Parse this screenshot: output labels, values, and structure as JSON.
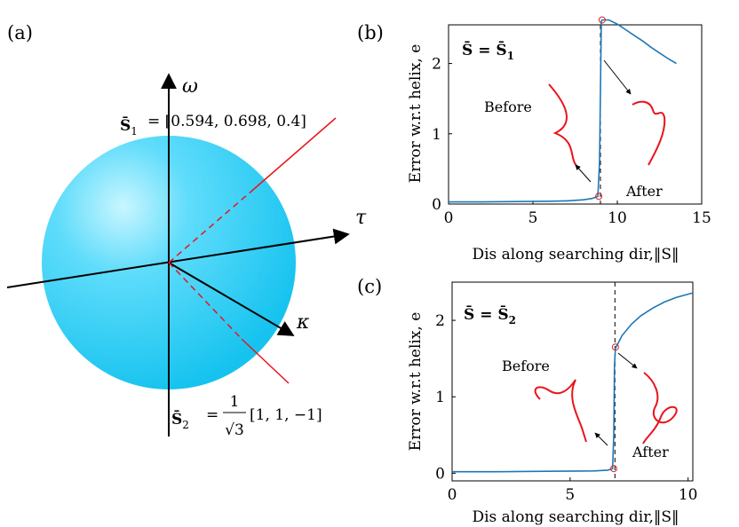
{
  "panel_a": {
    "label": "(a)",
    "axis_omega": "ω",
    "axis_tau": "τ",
    "axis_kappa": "κ",
    "s1_lhs": "S̄",
    "s1_sub": "1",
    "s1_rhs": "= [0.594, 0.698, 0.4]",
    "s2_lhs": "S̄",
    "s2_sub": "2",
    "s2_eq": "=",
    "s2_frac_num": "1",
    "s2_frac_den": "√3",
    "s2_vec": "[1, 1, −1]",
    "sphere_color": "#1EC8F0",
    "vector_color": "#e8141e"
  },
  "chart_data": [
    {
      "panel_label": "(b)",
      "type": "line",
      "title_lhs": "S̄ = S̄",
      "title_sub": "1",
      "xlabel": "Dis along searching dir,‖S‖",
      "ylabel": "Error w.r.t helix, e",
      "xlim": [
        0,
        15
      ],
      "ylim": [
        0,
        2.55
      ],
      "xticks": [
        0,
        5,
        10,
        15
      ],
      "yticks": [
        0,
        1,
        2
      ],
      "series": [
        {
          "color": "#1f77b4",
          "x": [
            0,
            2,
            4,
            6,
            7,
            8,
            8.5,
            8.85,
            8.95,
            9.0,
            9.05,
            9.1,
            9.5,
            10,
            10.5,
            11,
            11.5,
            12,
            12.5,
            13,
            13.5
          ],
          "y": [
            0.03,
            0.03,
            0.035,
            0.04,
            0.045,
            0.06,
            0.08,
            0.11,
            0.6,
            1.6,
            2.6,
            2.62,
            2.62,
            2.56,
            2.48,
            2.4,
            2.32,
            2.23,
            2.15,
            2.07,
            2.0
          ]
        }
      ],
      "markers": [
        {
          "x": 8.9,
          "y": 0.11
        },
        {
          "x": 9.1,
          "y": 2.62
        }
      ],
      "vline_x": 9.0,
      "annotations": {
        "before": "Before",
        "after": "After"
      }
    },
    {
      "panel_label": "(c)",
      "type": "line",
      "title_lhs": "S̄ = S̄",
      "title_sub": "2",
      "xlabel": "Dis along searching dir,‖S‖",
      "ylabel": "Error w.r.t helix, e",
      "xlim": [
        0,
        10.2
      ],
      "ylim": [
        -0.1,
        2.5
      ],
      "xticks": [
        0,
        5,
        10
      ],
      "yticks": [
        0,
        1,
        2
      ],
      "series": [
        {
          "color": "#1f77b4",
          "x": [
            0,
            2,
            4,
            6,
            6.6,
            6.8,
            6.85,
            6.88,
            6.92,
            6.95,
            7.2,
            7.6,
            8.0,
            8.5,
            9.0,
            9.5,
            10.2
          ],
          "y": [
            0.02,
            0.02,
            0.025,
            0.03,
            0.04,
            0.06,
            0.5,
            1.4,
            1.64,
            1.65,
            1.8,
            1.95,
            2.06,
            2.16,
            2.24,
            2.3,
            2.36
          ]
        }
      ],
      "markers": [
        {
          "x": 6.85,
          "y": 0.06
        },
        {
          "x": 6.92,
          "y": 1.65
        }
      ],
      "vline_x": 6.9,
      "annotations": {
        "before": "Before",
        "after": "After"
      }
    }
  ]
}
